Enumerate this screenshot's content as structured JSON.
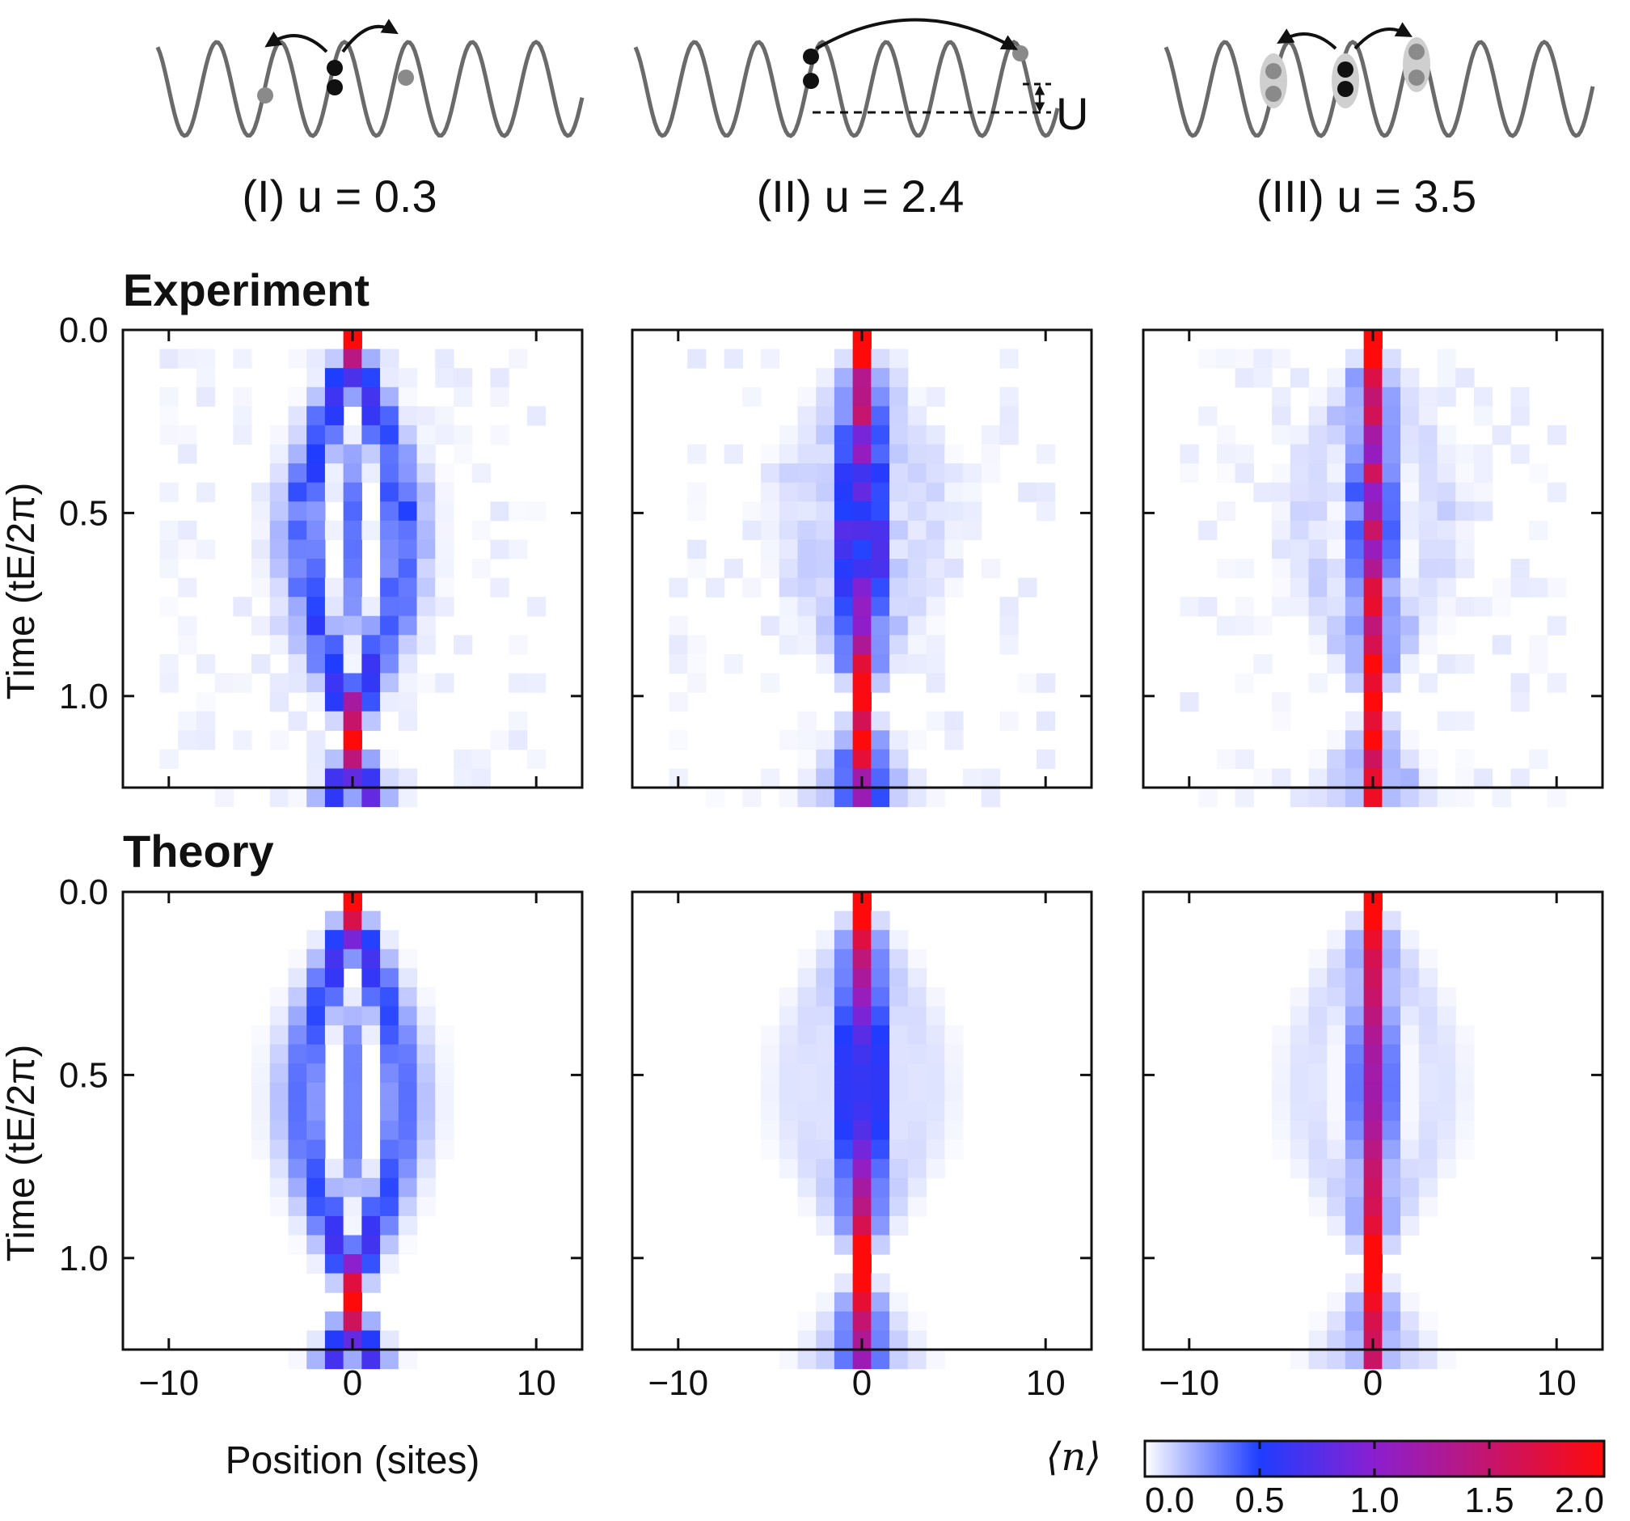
{
  "figure": {
    "row_titles": [
      "Experiment",
      "Theory"
    ],
    "cases": [
      {
        "label": "(I) u = 0.3"
      },
      {
        "label": "(II) u = 2.4"
      },
      {
        "label": "(III) u = 3.5"
      }
    ],
    "schematic_U_label": "U",
    "ylabel": "Time (tE/2π)",
    "xlabel": "Position (sites)",
    "colorbar_label": "⟨n⟩"
  },
  "chart_data": {
    "type": "heatmap",
    "x_range": [
      -12.5,
      12.5
    ],
    "y_range": [
      0,
      1.25
    ],
    "x_ticks": [
      -10,
      0,
      10
    ],
    "x_tick_labels": [
      "−10",
      "0",
      "10"
    ],
    "y_ticks": [
      0.0,
      0.5,
      1.0
    ],
    "y_tick_labels": [
      "0.0",
      "0.5",
      "1.0"
    ],
    "site_range": [
      -10,
      10
    ],
    "time_steps": 25,
    "colorbar": {
      "min": 0.0,
      "max": 2.0,
      "ticks": [
        0.0,
        0.5,
        1.0,
        1.5,
        2.0
      ],
      "tick_labels": [
        "0.0",
        "0.5",
        "1.0",
        "1.5",
        "2.0"
      ],
      "colors": [
        "#ffffff",
        "#1f3dff",
        "#8b1fd0",
        "#ff0a0a"
      ],
      "color_stops": [
        0.0,
        0.5,
        1.0,
        2.0
      ]
    },
    "panels": [
      {
        "row": "Experiment",
        "case": "(I) u = 0.3",
        "interaction": 0.3,
        "peak_density": 2.0
      },
      {
        "row": "Experiment",
        "case": "(II) u = 2.4",
        "interaction": 2.4,
        "peak_density": 2.0
      },
      {
        "row": "Experiment",
        "case": "(III) u = 3.5",
        "interaction": 3.5,
        "peak_density": 2.0
      },
      {
        "row": "Theory",
        "case": "(I) u = 0.3",
        "interaction": 0.3,
        "peak_density": 2.0
      },
      {
        "row": "Theory",
        "case": "(II) u = 2.4",
        "interaction": 2.4,
        "peak_density": 2.0
      },
      {
        "row": "Theory",
        "case": "(III) u = 3.5",
        "interaction": 3.5,
        "peak_density": 2.0
      }
    ]
  }
}
